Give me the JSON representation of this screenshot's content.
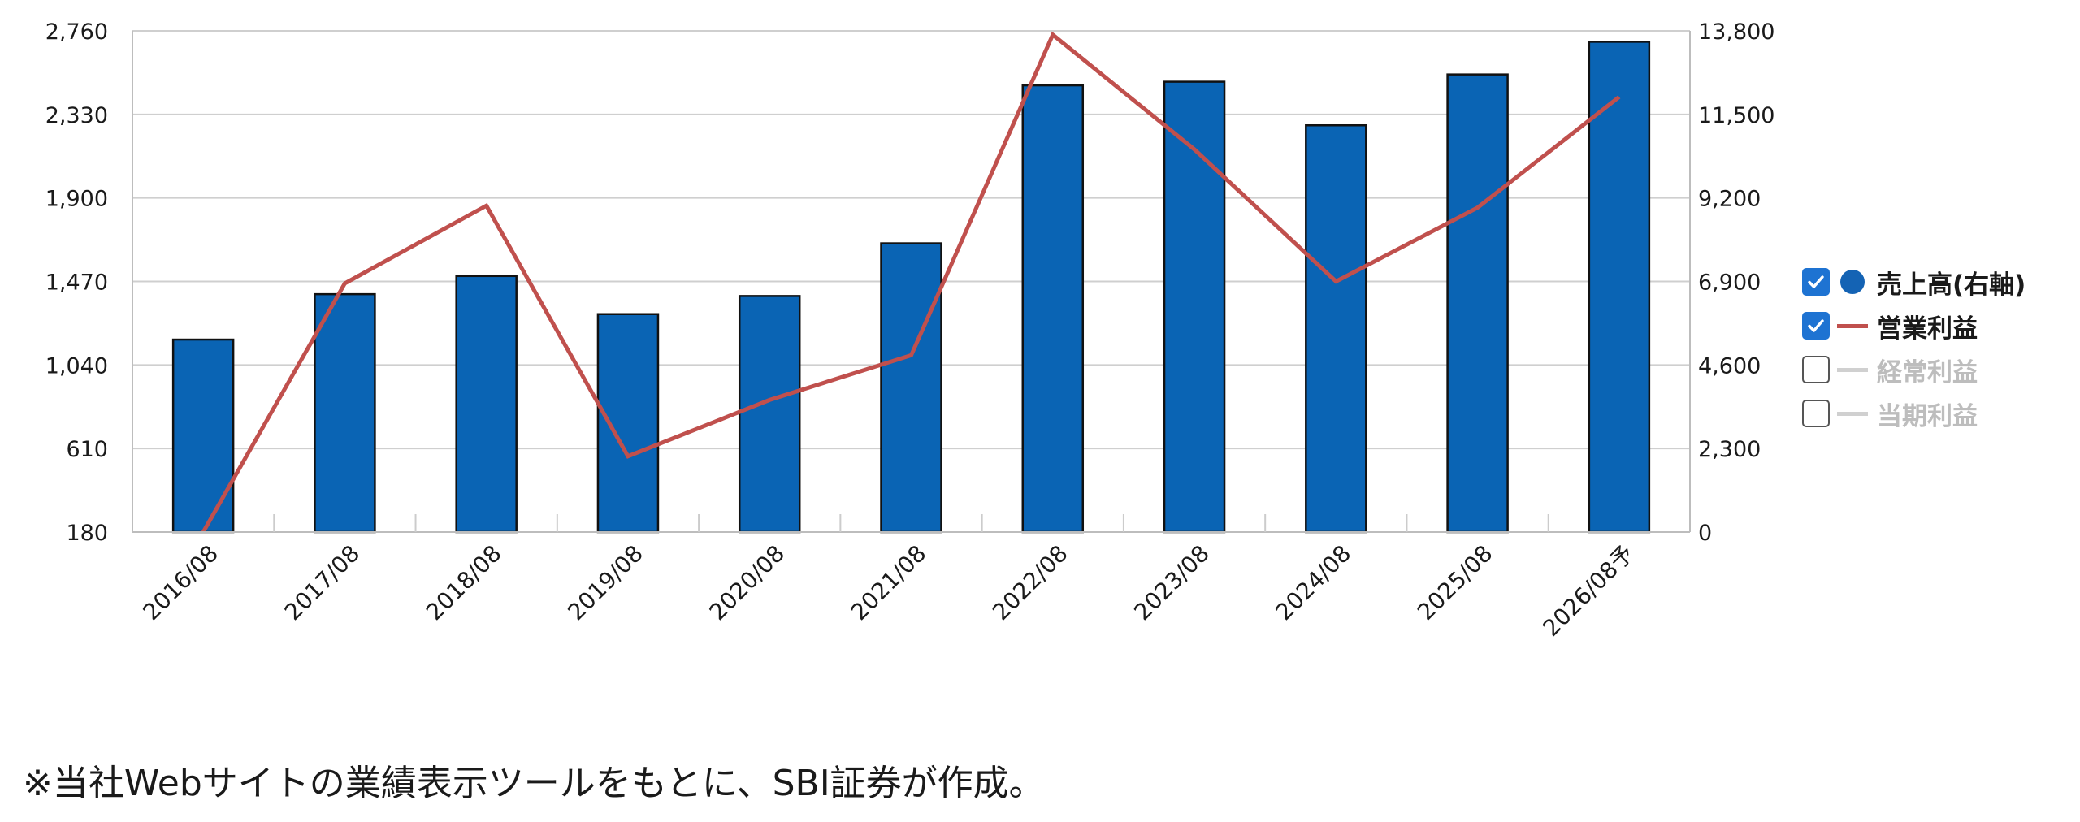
{
  "chart_data": {
    "type": "bar",
    "categories": [
      "2016/08",
      "2017/08",
      "2018/08",
      "2019/08",
      "2020/08",
      "2021/08",
      "2022/08",
      "2023/08",
      "2024/08",
      "2025/08",
      "2026/08予"
    ],
    "left_axis": {
      "ylim": [
        180,
        2760
      ],
      "ticks": [
        "180",
        "610",
        "1,040",
        "1,470",
        "1,900",
        "2,330",
        "2,760"
      ]
    },
    "right_axis": {
      "ylim": [
        0,
        13800
      ],
      "ticks": [
        "0",
        "2,300",
        "4,600",
        "6,900",
        "9,200",
        "11,500",
        "13,800"
      ]
    },
    "series": [
      {
        "name": "売上高(右軸)",
        "type": "bar",
        "axis": "right",
        "color": "#0a64b4",
        "values": [
          5300,
          6550,
          7050,
          6000,
          6500,
          7950,
          12300,
          12400,
          11200,
          12600,
          13500
        ]
      },
      {
        "name": "営業利益",
        "type": "line",
        "axis": "left",
        "color": "#c0504d",
        "values": [
          180,
          1460,
          1860,
          570,
          860,
          1090,
          2740,
          2150,
          1470,
          1850,
          2420
        ]
      }
    ],
    "grid": true
  },
  "legend": [
    {
      "label": "売上高(右軸)",
      "checked": true,
      "marker": "dot",
      "color": "#1463b4"
    },
    {
      "label": "営業利益",
      "checked": true,
      "marker": "line",
      "color": "#c0504d"
    },
    {
      "label": "経常利益",
      "checked": false,
      "marker": "line",
      "color": "#d0d0d0"
    },
    {
      "label": "当期利益",
      "checked": false,
      "marker": "line",
      "color": "#d0d0d0"
    }
  ],
  "footnote": "※当社Webサイトの業績表示ツールをもとに、SBI証券が作成。"
}
